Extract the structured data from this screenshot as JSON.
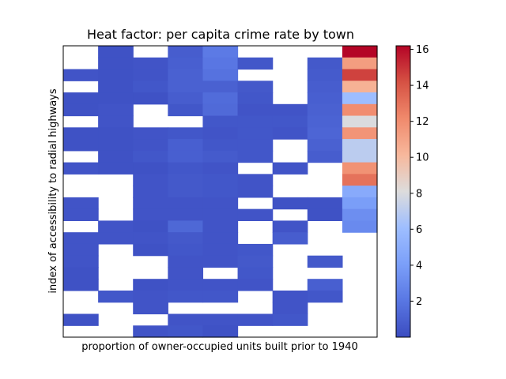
{
  "chart_data": {
    "type": "heatmap",
    "title": "Heat factor: per capita crime rate by town",
    "xlabel": "proportion of owner-occupied units built prior to 1940",
    "ylabel": "index of accessibility to radial highways",
    "n_cols": 9,
    "n_rows": 25,
    "value_range": [
      0.0,
      16.2
    ],
    "colormap": "coolwarm",
    "colorbar": {
      "ticks": [
        2,
        4,
        6,
        8,
        10,
        12,
        14,
        16
      ],
      "tick_labels": [
        "2",
        "4",
        "6",
        "8",
        "10",
        "12",
        "14",
        "16"
      ]
    },
    "cells": [
      [
        null,
        0.3,
        null,
        0.8,
        2.2,
        null,
        null,
        null,
        16.2
      ],
      [
        null,
        0.3,
        0.4,
        0.9,
        2.0,
        0.5,
        null,
        0.6,
        11.3
      ],
      [
        0.4,
        0.3,
        0.4,
        1.0,
        1.8,
        null,
        null,
        0.7,
        14.6
      ],
      [
        null,
        0.3,
        0.5,
        1.0,
        1.0,
        0.6,
        null,
        0.8,
        10.4
      ],
      [
        0.3,
        0.3,
        0.3,
        0.8,
        1.5,
        0.5,
        null,
        0.9,
        6.0
      ],
      [
        0.3,
        0.4,
        null,
        0.5,
        1.4,
        0.4,
        0.4,
        1.0,
        12.0
      ],
      [
        null,
        0.4,
        null,
        null,
        0.5,
        0.5,
        0.5,
        1.1,
        8.0
      ],
      [
        0.3,
        0.3,
        0.4,
        0.5,
        0.4,
        0.5,
        0.4,
        1.2,
        11.7
      ],
      [
        0.3,
        0.3,
        0.4,
        0.9,
        0.5,
        0.5,
        null,
        1.0,
        7.0
      ],
      [
        null,
        0.3,
        0.5,
        0.9,
        0.7,
        0.5,
        null,
        0.8,
        7.0
      ],
      [
        0.4,
        0.3,
        0.3,
        0.5,
        0.4,
        null,
        0.4,
        null,
        11.8
      ],
      [
        null,
        null,
        0.4,
        0.6,
        0.5,
        0.4,
        null,
        null,
        13.0
      ],
      [
        null,
        null,
        0.4,
        0.6,
        0.5,
        0.4,
        null,
        null,
        4.8
      ],
      [
        0.4,
        null,
        0.4,
        0.4,
        0.4,
        null,
        0.3,
        0.3,
        4.0
      ],
      [
        0.4,
        null,
        0.4,
        0.4,
        0.4,
        0.4,
        null,
        0.3,
        3.2
      ],
      [
        null,
        0.4,
        0.3,
        1.3,
        0.4,
        null,
        0.4,
        null,
        3.0
      ],
      [
        0.4,
        0.4,
        0.4,
        0.6,
        0.4,
        null,
        0.8,
        null,
        null
      ],
      [
        0.4,
        null,
        0.3,
        0.5,
        0.4,
        0.5,
        null,
        null,
        null
      ],
      [
        0.4,
        null,
        null,
        0.4,
        0.4,
        0.6,
        null,
        0.6,
        null
      ],
      [
        0.3,
        null,
        null,
        0.4,
        null,
        0.5,
        null,
        null,
        null
      ],
      [
        0.3,
        null,
        0.3,
        0.4,
        0.4,
        0.4,
        null,
        0.9,
        null
      ],
      [
        null,
        0.5,
        0.4,
        0.5,
        0.5,
        null,
        0.4,
        0.5,
        null
      ],
      [
        null,
        null,
        0.4,
        null,
        null,
        null,
        0.4,
        null,
        null
      ],
      [
        0.3,
        null,
        null,
        0.4,
        0.4,
        0.4,
        0.5,
        null,
        null
      ],
      [
        null,
        null,
        0.4,
        0.5,
        0.3,
        null,
        null,
        null,
        null
      ]
    ]
  }
}
